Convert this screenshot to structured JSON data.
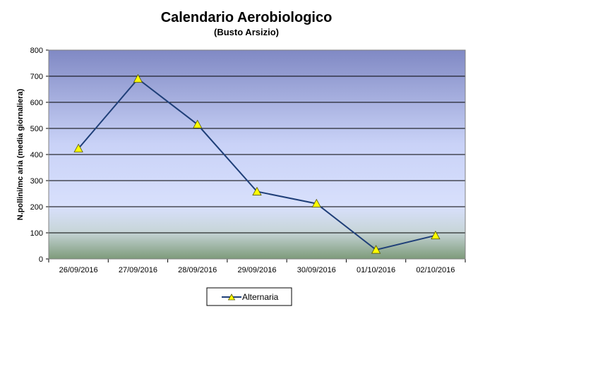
{
  "chart_data": {
    "type": "line",
    "title": "Calendario Aerobiologico",
    "subtitle": "(Busto Arsizio)",
    "xlabel": "",
    "ylabel": "N.pollini/mc aria (media giornaliera)",
    "categories": [
      "26/09/2016",
      "27/09/2016",
      "28/09/2016",
      "29/09/2016",
      "30/09/2016",
      "01/10/2016",
      "02/10/2016"
    ],
    "series": [
      {
        "name": "Alternaria",
        "values": [
          423,
          690,
          515,
          258,
          212,
          35,
          90
        ],
        "color": "#1f3f78",
        "marker_color": "#ffff00",
        "marker": "triangle"
      }
    ],
    "ylim": [
      0,
      800
    ],
    "yticks": [
      "0",
      "100",
      "200",
      "300",
      "400",
      "500",
      "600",
      "700",
      "800"
    ],
    "grid": true,
    "legend_position": "bottom",
    "background_gradient": [
      "#7f8bc6",
      "#d6defc",
      "#7a9a7a"
    ]
  }
}
